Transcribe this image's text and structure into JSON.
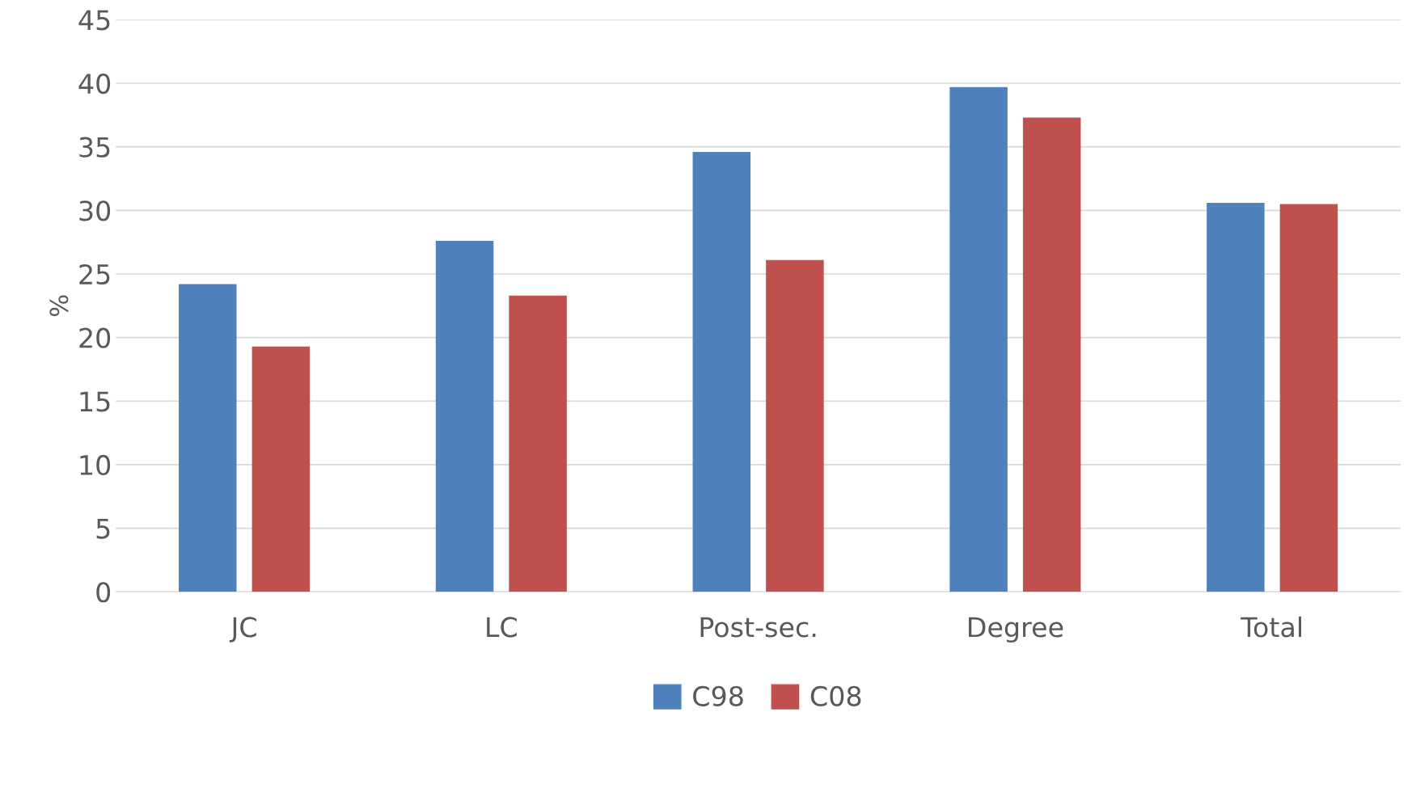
{
  "chart_data": {
    "type": "bar",
    "ylabel": "%",
    "categories": [
      "JC",
      "LC",
      "Post-sec.",
      "Degree",
      "Total"
    ],
    "series": [
      {
        "name": "C98",
        "color": "#4f81bd",
        "values": [
          24.2,
          27.6,
          34.6,
          39.7,
          30.6
        ]
      },
      {
        "name": "C08",
        "color": "#c0504d",
        "values": [
          19.3,
          23.3,
          26.1,
          37.3,
          30.5
        ]
      }
    ],
    "ylim": [
      0,
      45
    ],
    "yticks": [
      0,
      5,
      10,
      15,
      20,
      25,
      30,
      35,
      40,
      45
    ],
    "grid": "y",
    "legend": "bottom"
  }
}
